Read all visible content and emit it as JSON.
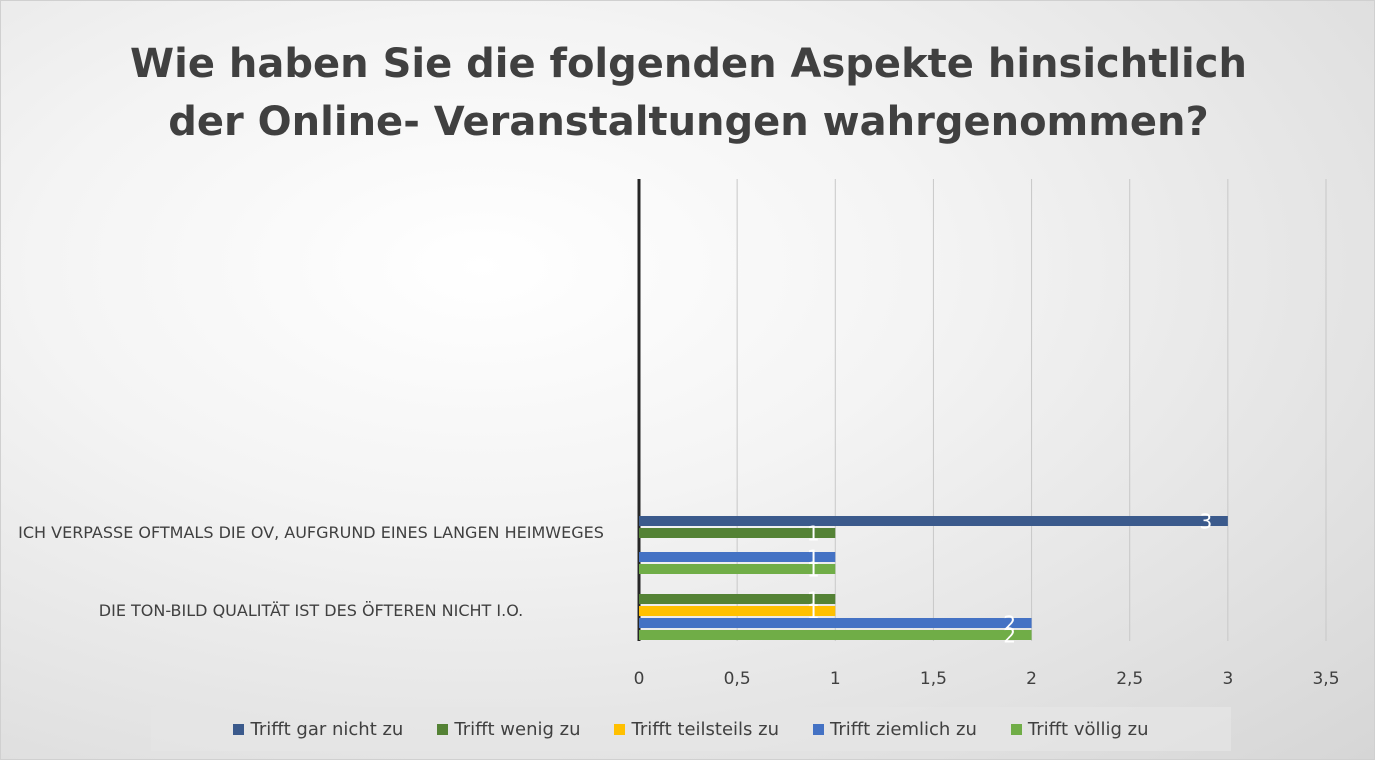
{
  "chart_data": {
    "type": "bar",
    "orientation": "horizontal",
    "title": "Wie haben Sie die folgenden Aspekte hinsichtlich der Online- Veranstaltungen wahrgenommen?",
    "categories": [
      "ICH VERPASSE OFTMALS DIE OV, AUFGRUND EINES LANGEN HEIMWEGES",
      "DIE TON-BILD QUALITÄT IST DES ÖFTEREN NICHT I.O."
    ],
    "series": [
      {
        "name": "Trifft gar nicht zu",
        "color": "#3b5a8c",
        "values": [
          3,
          null
        ]
      },
      {
        "name": "Trifft wenig zu",
        "color": "#548235",
        "values": [
          1,
          1
        ]
      },
      {
        "name": "Trifft teilsteils zu",
        "color": "#ffc000",
        "values": [
          null,
          1
        ]
      },
      {
        "name": "Trifft ziemlich zu",
        "color": "#4472c4",
        "values": [
          1,
          2
        ]
      },
      {
        "name": "Trifft völlig zu",
        "color": "#70ad47",
        "values": [
          1,
          2
        ]
      }
    ],
    "xlim": [
      0,
      3.5
    ],
    "xticks": [
      0,
      {
        "value": 0.5,
        "label": "0,5"
      },
      1,
      {
        "value": 1.5,
        "label": "1,5"
      },
      2,
      {
        "value": 2.5,
        "label": "2,5"
      },
      3,
      {
        "value": 3.5,
        "label": "3,5"
      }
    ],
    "grid": true,
    "legend": "bottom"
  }
}
